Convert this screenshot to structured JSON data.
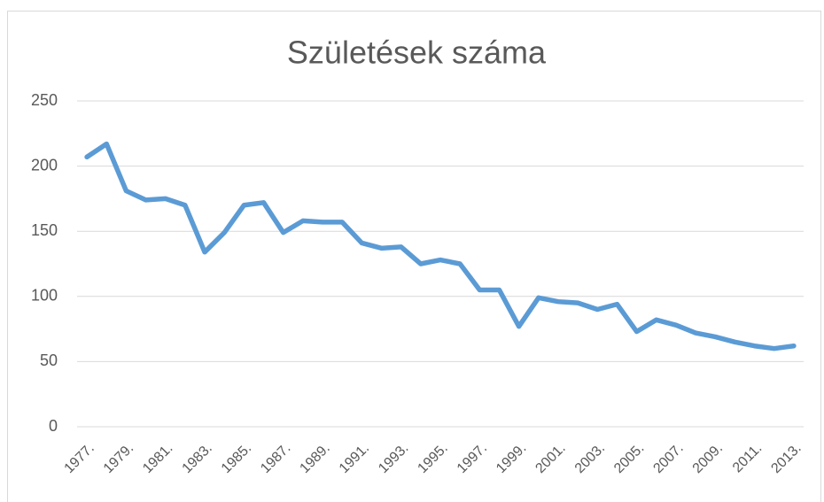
{
  "chart_data": {
    "type": "line",
    "title": "Születések száma",
    "categories": [
      "1977.",
      null,
      "1979.",
      null,
      "1981.",
      null,
      "1983.",
      null,
      "1985.",
      null,
      "1987.",
      null,
      "1989.",
      null,
      "1991.",
      null,
      "1993.",
      null,
      "1995.",
      null,
      "1997.",
      null,
      "1999.",
      null,
      "2001.",
      null,
      "2003.",
      null,
      "2005.",
      null,
      "2007.",
      null,
      "2009.",
      null,
      "2011.",
      null,
      "2013."
    ],
    "values": [
      207,
      217,
      181,
      174,
      175,
      170,
      134,
      149,
      170,
      172,
      149,
      158,
      157,
      157,
      141,
      137,
      138,
      125,
      128,
      125,
      105,
      105,
      77,
      99,
      96,
      95,
      90,
      94,
      73,
      82,
      78,
      72,
      69,
      65,
      62,
      60,
      62
    ],
    "color": "#5b9bd5",
    "ylim": [
      0,
      250
    ],
    "yticks": [
      0,
      50,
      100,
      150,
      200,
      250
    ],
    "grid": true
  }
}
